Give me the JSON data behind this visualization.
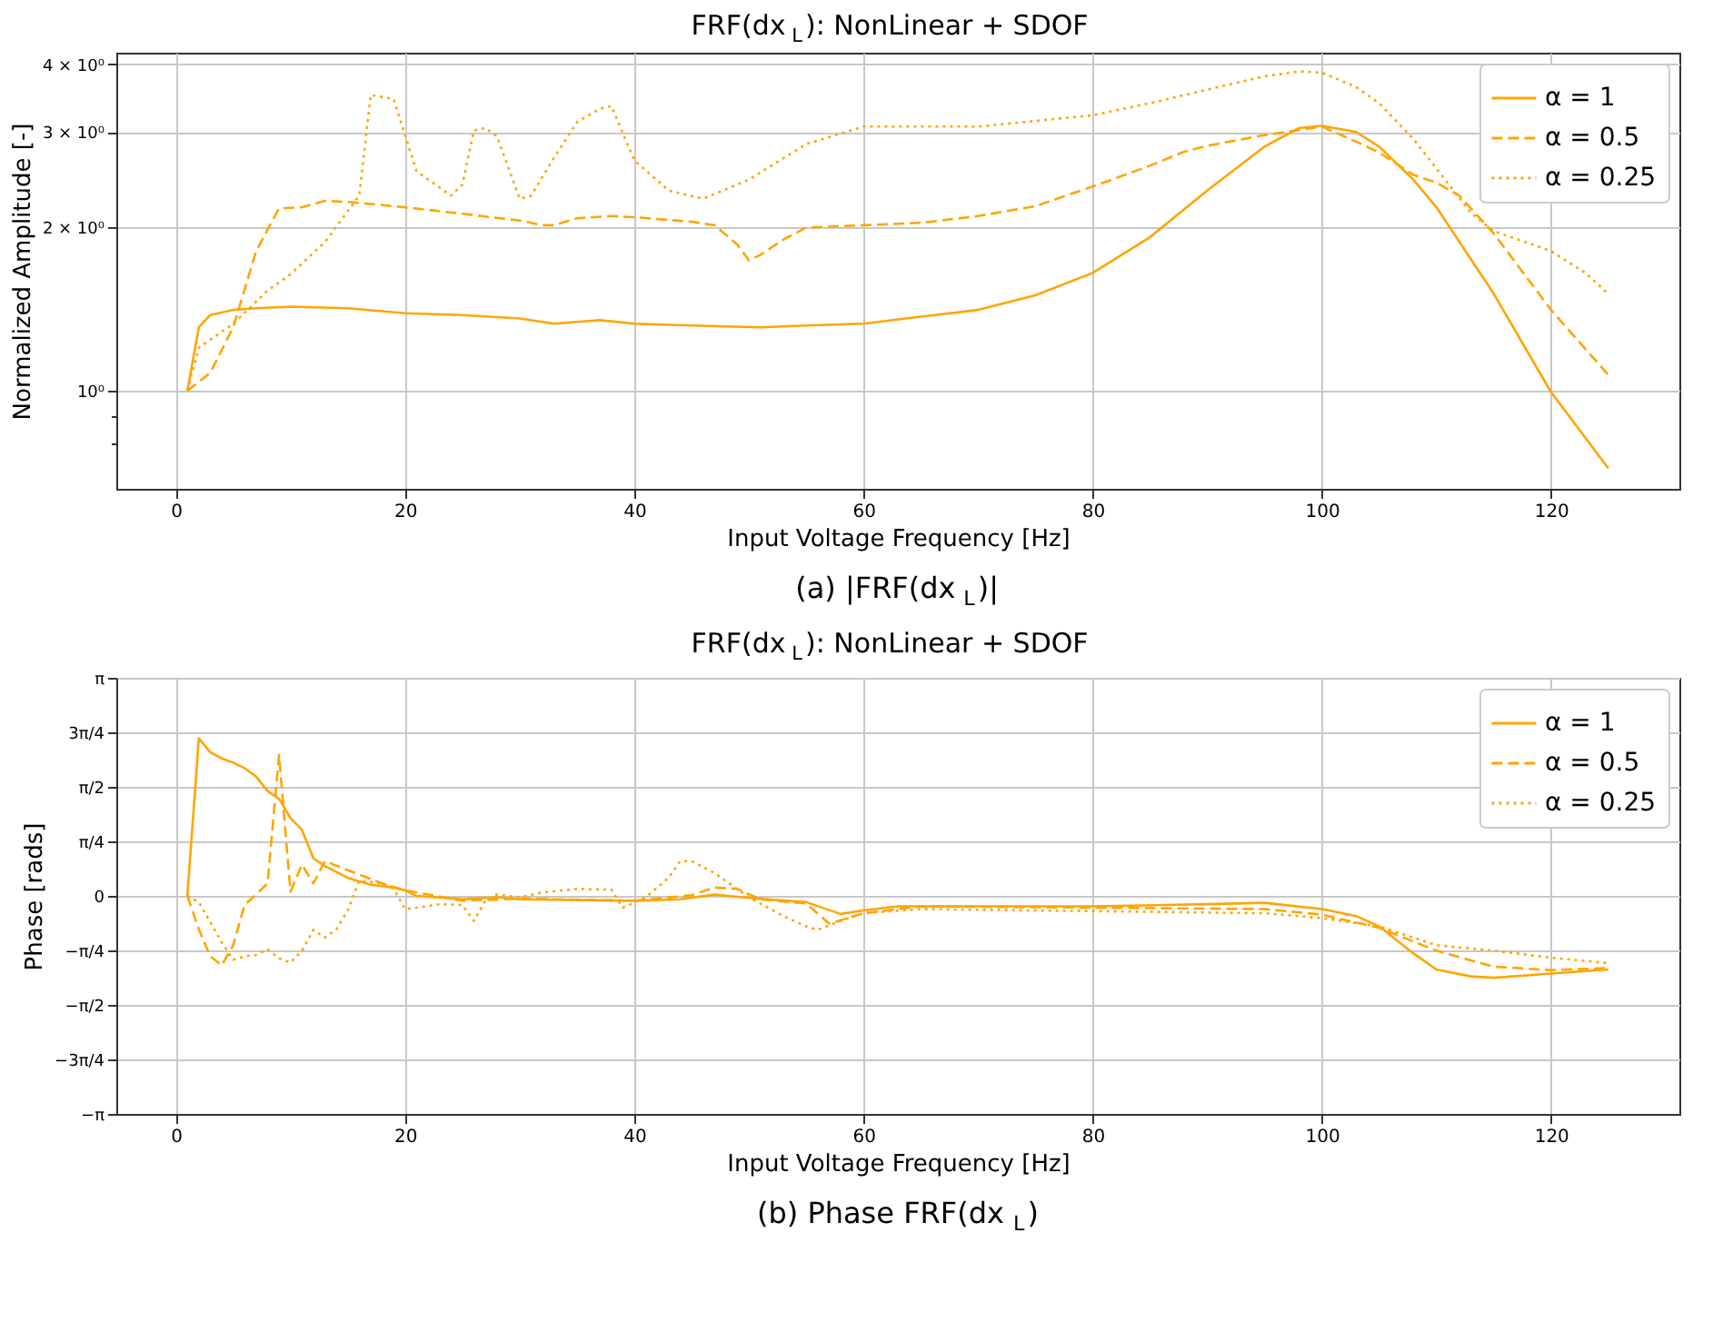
{
  "chart_data": [
    {
      "type": "line",
      "title": "FRF(dx$_{L}$): NonLinear + SDOF",
      "xlabel": "Input Voltage Frequency [Hz]",
      "ylabel": "Normalized Amplitude [-]",
      "log": "y",
      "grid": true,
      "legend": "top right",
      "marker": "none",
      "xlim": [
        -5.2,
        131.2
      ],
      "xticks": [
        0,
        20,
        40,
        60,
        80,
        100,
        120
      ],
      "ylim": [
        0.66,
        4.2
      ],
      "yticks": [
        {
          "value": 0.8,
          "label": null
        },
        {
          "value": 0.9,
          "label": null
        },
        {
          "value": 1,
          "label": "10⁰"
        },
        {
          "value": 2,
          "label": "2 × 10⁰"
        },
        {
          "value": 3,
          "label": "3 × 10⁰"
        },
        {
          "value": 4,
          "label": "4 × 10⁰"
        }
      ],
      "annotations": [
        "(a) |FRF(dx$_{L}$)|"
      ],
      "series": [
        {
          "name": "α = 1",
          "color": "#ffa500",
          "line_style": "solid",
          "x": [
            1,
            2,
            3,
            5,
            7,
            10,
            15,
            20,
            25,
            30,
            33,
            35,
            37,
            40,
            45,
            51,
            55,
            60,
            65,
            70,
            75,
            80,
            85,
            90,
            95,
            98,
            100,
            103,
            105,
            108,
            110,
            115,
            120,
            125
          ],
          "values": [
            1.0,
            1.31,
            1.38,
            1.41,
            1.42,
            1.43,
            1.42,
            1.39,
            1.38,
            1.36,
            1.33,
            1.34,
            1.35,
            1.33,
            1.32,
            1.31,
            1.32,
            1.33,
            1.37,
            1.41,
            1.5,
            1.65,
            1.92,
            2.34,
            2.82,
            3.05,
            3.08,
            3.0,
            2.82,
            2.45,
            2.18,
            1.51,
            0.995,
            0.72
          ]
        },
        {
          "name": "α = 0.5",
          "color": "#ffa500",
          "line_style": "dashed",
          "x": [
            1,
            3,
            5,
            7,
            9,
            11,
            13,
            15,
            20,
            25,
            30,
            32,
            33,
            35,
            38,
            40,
            45,
            47,
            49,
            50,
            51,
            53,
            55,
            60,
            65,
            70,
            75,
            80,
            85,
            88,
            90,
            95,
            100,
            103,
            105,
            108,
            110,
            112,
            115,
            120,
            125
          ],
          "values": [
            1.0,
            1.08,
            1.31,
            1.81,
            2.17,
            2.18,
            2.24,
            2.23,
            2.18,
            2.12,
            2.06,
            2.02,
            2.02,
            2.08,
            2.1,
            2.09,
            2.05,
            2.02,
            1.86,
            1.74,
            1.78,
            1.9,
            2.0,
            2.02,
            2.04,
            2.1,
            2.19,
            2.38,
            2.6,
            2.76,
            2.83,
            2.96,
            3.07,
            2.88,
            2.75,
            2.5,
            2.42,
            2.29,
            1.95,
            1.41,
            1.07
          ]
        },
        {
          "name": "α = 0.25",
          "color": "#ffa500",
          "line_style": "dotted",
          "x": [
            1,
            2,
            5,
            8,
            10,
            13,
            16,
            17,
            19,
            21,
            24,
            25,
            26,
            27,
            28,
            30,
            31,
            33,
            35,
            37,
            38,
            40,
            43,
            46,
            50,
            55,
            60,
            70,
            80,
            85,
            90,
            95,
            98,
            100,
            103,
            105,
            108,
            110,
            113,
            115,
            120,
            123,
            125
          ],
          "values": [
            1.0,
            1.2,
            1.33,
            1.53,
            1.64,
            1.88,
            2.29,
            3.51,
            3.45,
            2.54,
            2.29,
            2.4,
            3.02,
            3.05,
            2.95,
            2.26,
            2.29,
            2.69,
            3.13,
            3.31,
            3.35,
            2.66,
            2.34,
            2.26,
            2.45,
            2.85,
            3.07,
            3.07,
            3.22,
            3.39,
            3.59,
            3.8,
            3.88,
            3.86,
            3.63,
            3.39,
            2.91,
            2.57,
            2.13,
            1.97,
            1.81,
            1.65,
            1.51
          ]
        }
      ]
    },
    {
      "type": "line",
      "title": "FRF(dx$_{L}$): NonLinear + SDOF",
      "xlabel": "Input Voltage Frequency [Hz]",
      "ylabel": "Phase [rads]",
      "grid": true,
      "legend": "top right",
      "marker": "none",
      "xlim": [
        -5.2,
        131.2
      ],
      "xticks": [
        0,
        20,
        40,
        60,
        80,
        100,
        120
      ],
      "ylim": [
        -3.1416,
        3.1416
      ],
      "yticks": [
        {
          "value": -3.1416,
          "label": "−π"
        },
        {
          "value": -2.3562,
          "label": "−3π/4"
        },
        {
          "value": -1.5708,
          "label": "−π/2"
        },
        {
          "value": -0.7854,
          "label": "−π/4"
        },
        0,
        {
          "value": 0.7854,
          "label": "π/4"
        },
        {
          "value": 1.5708,
          "label": "π/2"
        },
        {
          "value": 2.3562,
          "label": "3π/4"
        },
        {
          "value": 3.1416,
          "label": "π"
        }
      ],
      "annotations": [
        "(b) Phase FRF(dx$_{L}$)"
      ],
      "series": [
        {
          "name": "α = 1",
          "color": "#ffa500",
          "line_style": "solid",
          "x": [
            1,
            2,
            3,
            4,
            5,
            6,
            7,
            8,
            9,
            10,
            11,
            12,
            13,
            15,
            17,
            19,
            20,
            21,
            25,
            28,
            30,
            40,
            44,
            47,
            50,
            55,
            58,
            60,
            63,
            70,
            80,
            90,
            95,
            100,
            103,
            105,
            108,
            110,
            113,
            115,
            120,
            125
          ],
          "values": [
            0,
            2.27,
            2.07,
            1.98,
            1.92,
            1.84,
            1.72,
            1.51,
            1.4,
            1.12,
            0.95,
            0.54,
            0.43,
            0.26,
            0.16,
            0.12,
            0.08,
            0,
            -0.05,
            -0.02,
            -0.05,
            -0.07,
            -0.05,
            0.02,
            -0.03,
            -0.09,
            -0.26,
            -0.21,
            -0.15,
            -0.15,
            -0.15,
            -0.12,
            -0.1,
            -0.19,
            -0.29,
            -0.44,
            -0.83,
            -1.06,
            -1.16,
            -1.18,
            -1.12,
            -1.06
          ]
        },
        {
          "name": "α = 0.5",
          "color": "#ffa500",
          "line_style": "dashed",
          "x": [
            1,
            2,
            3,
            4,
            5,
            6,
            7,
            8,
            9,
            10,
            11,
            12,
            13,
            15,
            18,
            20,
            25,
            30,
            40,
            45,
            47,
            49,
            51,
            55,
            57,
            60,
            65,
            80,
            95,
            100,
            105,
            110,
            115,
            120,
            125
          ],
          "values": [
            0,
            -0.48,
            -0.87,
            -1.0,
            -0.71,
            -0.13,
            0.02,
            0.18,
            2.03,
            0.06,
            0.45,
            0.18,
            0.5,
            0.37,
            0.18,
            0.08,
            -0.07,
            -0.04,
            -0.07,
            0.01,
            0.12,
            0.1,
            -0.05,
            -0.11,
            -0.4,
            -0.25,
            -0.15,
            -0.17,
            -0.19,
            -0.27,
            -0.46,
            -0.79,
            -1.02,
            -1.07,
            -1.04
          ]
        },
        {
          "name": "α = 0.25",
          "color": "#ffa500",
          "line_style": "dotted",
          "x": [
            1,
            2,
            4,
            5,
            6,
            7,
            8,
            9,
            10,
            11,
            12,
            13,
            14,
            15,
            16,
            18,
            19,
            20,
            21,
            23,
            25,
            26,
            27,
            28,
            30,
            32,
            35,
            38,
            39,
            41,
            43,
            44,
            45,
            47,
            50,
            53,
            55,
            56,
            58,
            60,
            65,
            80,
            95,
            100,
            105,
            110,
            115,
            120,
            125
          ],
          "values": [
            0,
            -0.09,
            -0.67,
            -0.92,
            -0.87,
            -0.85,
            -0.77,
            -0.9,
            -0.96,
            -0.79,
            -0.49,
            -0.6,
            -0.48,
            -0.21,
            0.22,
            0.18,
            0.1,
            -0.19,
            -0.17,
            -0.12,
            -0.13,
            -0.36,
            -0.07,
            0.02,
            -0.02,
            0.05,
            0.1,
            0.09,
            -0.17,
            -0.02,
            0.26,
            0.5,
            0.5,
            0.33,
            -0.02,
            -0.29,
            -0.44,
            -0.49,
            -0.36,
            -0.25,
            -0.19,
            -0.22,
            -0.25,
            -0.32,
            -0.44,
            -0.71,
            -0.79,
            -0.89,
            -0.97
          ]
        }
      ]
    }
  ]
}
